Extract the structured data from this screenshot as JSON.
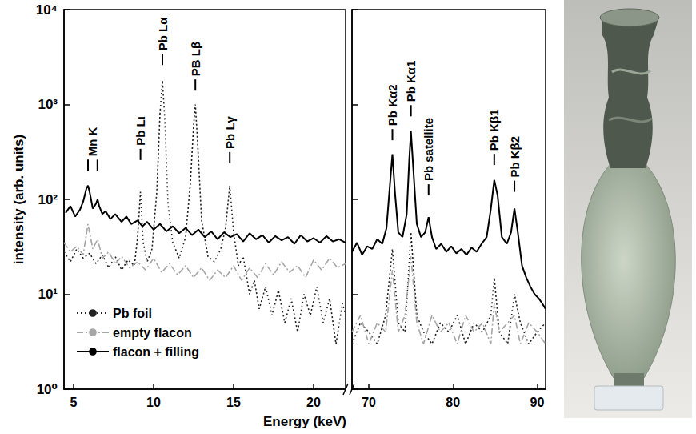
{
  "chart_data": [
    {
      "type": "line",
      "xlabel": "Energy (keV)",
      "ylabel": "intensity (arb. units)",
      "log": "y",
      "grid": false,
      "legend": "lower left",
      "xlim": [
        4.4,
        22
      ],
      "xticks": [
        5,
        10,
        15,
        20
      ],
      "ylim": [
        1,
        10000
      ],
      "yticks": [
        {
          "value": 1,
          "label": "10⁰"
        },
        {
          "value": 10,
          "label": "10¹"
        },
        {
          "value": 100,
          "label": "10²"
        },
        {
          "value": 1000,
          "label": "10³"
        },
        {
          "value": 10000,
          "label": "10⁴"
        }
      ],
      "series": [
        {
          "name": "Pb foil",
          "color": "#222222",
          "line_style": "dotted",
          "x": [
            4.4,
            4.8,
            5.2,
            5.6,
            6.0,
            6.4,
            6.8,
            7.2,
            7.6,
            8.0,
            8.4,
            8.8,
            9.0,
            9.18,
            9.35,
            9.6,
            9.9,
            10.2,
            10.4,
            10.55,
            10.7,
            10.9,
            11.2,
            11.6,
            12.0,
            12.3,
            12.5,
            12.61,
            12.75,
            13.0,
            13.4,
            13.8,
            14.2,
            14.5,
            14.76,
            15.0,
            15.3,
            15.6,
            16.0,
            16.3,
            16.6,
            17.0,
            17.4,
            17.8,
            18.2,
            18.6,
            19.0,
            19.4,
            19.8,
            20.2,
            20.6,
            21.0,
            21.4,
            21.8,
            22.0
          ],
          "values": [
            28,
            22,
            30,
            24,
            27,
            21,
            26,
            19,
            25,
            18,
            23,
            20,
            40,
            120,
            35,
            22,
            30,
            120,
            800,
            1800,
            700,
            90,
            35,
            24,
            40,
            150,
            600,
            1000,
            400,
            60,
            25,
            22,
            30,
            50,
            140,
            45,
            20,
            25,
            10,
            14,
            7,
            12,
            6,
            11,
            5,
            9,
            4,
            10,
            6,
            12,
            5,
            9,
            3,
            8,
            6
          ]
        },
        {
          "name": "empty flacon",
          "color": "#a6a6a6",
          "line_style": "dashdot",
          "x": [
            4.4,
            4.8,
            5.2,
            5.6,
            5.9,
            6.2,
            6.5,
            6.8,
            7.2,
            7.6,
            8.0,
            8.5,
            9.0,
            9.5,
            10.0,
            10.5,
            11.0,
            11.5,
            12.0,
            12.5,
            13.0,
            13.5,
            14.0,
            14.5,
            15.0,
            15.5,
            16.0,
            16.5,
            17.0,
            17.5,
            18.0,
            18.5,
            19.0,
            19.5,
            20.0,
            20.5,
            21.0,
            21.5,
            22.0
          ],
          "values": [
            35,
            28,
            32,
            26,
            55,
            30,
            38,
            24,
            28,
            21,
            25,
            19,
            22,
            18,
            24,
            17,
            21,
            16,
            20,
            15,
            19,
            14,
            18,
            15,
            20,
            14,
            19,
            15,
            21,
            16,
            22,
            17,
            20,
            15,
            23,
            18,
            24,
            19,
            21
          ]
        },
        {
          "name": "flacon + filling",
          "color": "#000000",
          "line_style": "solid",
          "x": [
            4.5,
            4.8,
            5.1,
            5.4,
            5.6,
            5.8,
            5.9,
            6.0,
            6.2,
            6.4,
            6.5,
            6.6,
            6.8,
            7.0,
            7.3,
            7.6,
            8.0,
            8.3,
            8.6,
            9.0,
            9.3,
            9.6,
            10.0,
            10.4,
            10.8,
            11.2,
            11.6,
            12.0,
            12.4,
            12.8,
            13.2,
            13.6,
            14.0,
            14.4,
            14.8,
            15.2,
            15.6,
            16.0,
            16.4,
            16.8,
            17.2,
            17.6,
            18.0,
            18.4,
            18.8,
            19.2,
            19.6,
            20.0,
            20.4,
            20.8,
            21.2,
            21.6,
            22.0
          ],
          "values": [
            72,
            85,
            66,
            78,
            95,
            130,
            140,
            120,
            80,
            90,
            100,
            85,
            70,
            75,
            62,
            70,
            58,
            66,
            55,
            60,
            52,
            58,
            48,
            55,
            46,
            52,
            44,
            50,
            42,
            48,
            40,
            46,
            38,
            45,
            40,
            43,
            36,
            44,
            38,
            42,
            35,
            41,
            37,
            40,
            34,
            42,
            36,
            39,
            35,
            41,
            36,
            38,
            35
          ]
        }
      ],
      "annotations": [
        {
          "text": "Mn K",
          "x": [
            5.9,
            6.49
          ],
          "y": 200
        },
        {
          "text": "Pb Lι",
          "x": 9.18,
          "y": 260
        },
        {
          "text": "Pb Lα",
          "x": 10.55,
          "y": 2600
        },
        {
          "text": "PB Lβ",
          "x": 12.61,
          "y": 1400
        },
        {
          "text": "Pb Lγ",
          "x": 14.76,
          "y": 240
        }
      ]
    },
    {
      "type": "line",
      "log": "y",
      "grid": false,
      "tick_labels": "x",
      "xlim": [
        68,
        91
      ],
      "xticks": [
        70,
        80,
        90
      ],
      "ylim": [
        1,
        10000
      ],
      "series": [
        {
          "name": "Pb foil",
          "color": "#222222",
          "line_style": "dotted",
          "x": [
            68,
            69,
            70,
            71,
            72,
            72.8,
            73.5,
            74.3,
            75.0,
            75.7,
            76.5,
            77.5,
            78.5,
            79.5,
            80.5,
            81.5,
            82.5,
            83.5,
            84.5,
            84.9,
            85.5,
            86.5,
            87.3,
            88,
            89,
            90,
            91
          ],
          "values": [
            3,
            5,
            4,
            3,
            6,
            30,
            5,
            4,
            45,
            6,
            4,
            3,
            5,
            4,
            6,
            3,
            5,
            4,
            6,
            15,
            4,
            3,
            10,
            5,
            3,
            4,
            5
          ]
        },
        {
          "name": "empty flacon",
          "color": "#a6a6a6",
          "line_style": "dashdot",
          "x": [
            68,
            69,
            70,
            71,
            72,
            72.8,
            73.5,
            74.3,
            75.0,
            75.7,
            76.5,
            77.5,
            78.5,
            79.5,
            80.5,
            81.5,
            82.5,
            83.5,
            84.5,
            84.9,
            85.5,
            86.5,
            87.3,
            88,
            89,
            90,
            91
          ],
          "values": [
            4,
            6,
            3,
            5,
            4,
            18,
            4,
            6,
            25,
            5,
            3,
            6,
            4,
            5,
            3,
            6,
            4,
            5,
            3,
            8,
            4,
            5,
            6,
            3,
            5,
            4,
            3
          ]
        },
        {
          "name": "flacon + filling",
          "color": "#000000",
          "line_style": "solid",
          "x": [
            68,
            68.6,
            69.2,
            69.8,
            70.4,
            71.0,
            71.6,
            72.1,
            72.5,
            72.8,
            73.1,
            73.5,
            74.0,
            74.5,
            74.8,
            75.0,
            75.3,
            75.7,
            76.2,
            76.7,
            77.1,
            77.5,
            78.0,
            78.6,
            79.2,
            79.8,
            80.4,
            81.0,
            81.6,
            82.2,
            82.8,
            83.4,
            84.0,
            84.5,
            84.9,
            85.3,
            85.8,
            86.4,
            86.9,
            87.3,
            87.7,
            88.2,
            88.7,
            89.2,
            89.7,
            90.2,
            90.6,
            91.0
          ],
          "values": [
            28,
            35,
            26,
            32,
            30,
            38,
            34,
            50,
            140,
            300,
            120,
            45,
            40,
            70,
            260,
            520,
            200,
            55,
            40,
            45,
            65,
            40,
            30,
            34,
            28,
            32,
            27,
            30,
            26,
            31,
            28,
            34,
            40,
            80,
            160,
            110,
            40,
            34,
            45,
            80,
            45,
            20,
            15,
            12,
            10,
            9,
            8,
            7
          ]
        }
      ],
      "annotations": [
        {
          "text": "Pb Kα2",
          "x": 72.8,
          "y": 420
        },
        {
          "text": "Pb Kα1",
          "x": 75.0,
          "y": 750
        },
        {
          "text": "Pb satellite",
          "x": 77.1,
          "y": 110
        },
        {
          "text": "Pb Kβ1",
          "x": 84.9,
          "y": 230
        },
        {
          "text": "Pb Kβ2",
          "x": 87.3,
          "y": 120
        }
      ]
    }
  ]
}
